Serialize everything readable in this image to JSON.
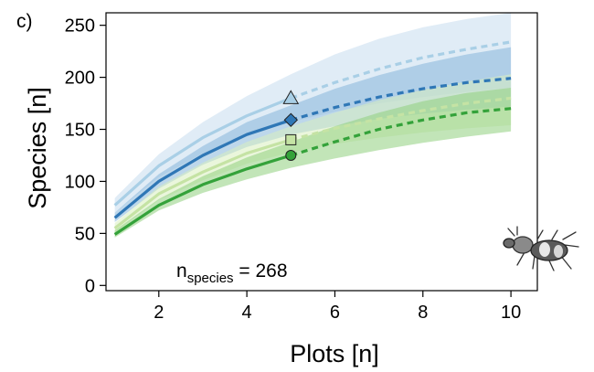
{
  "panel_label": "c)",
  "annotation": {
    "prefix": "n",
    "subscript": "species",
    "equals": " = ",
    "value": "268"
  },
  "chart_data": {
    "type": "line",
    "xlabel": "Plots [n]",
    "ylabel": "Species [n]",
    "xlim": [
      0.8,
      10.6
    ],
    "ylim": [
      -5,
      262
    ],
    "xticks": [
      2,
      4,
      6,
      8,
      10
    ],
    "yticks": [
      0,
      50,
      100,
      150,
      200,
      250
    ],
    "grid": false,
    "observed_until": 5,
    "series": [
      {
        "color": "#a9cfe6",
        "band_color": "#c6dcee",
        "marker": "triangle",
        "x": [
          1,
          2,
          3,
          4,
          5,
          6,
          7,
          8,
          9,
          10
        ],
        "y": [
          77,
          115,
          142,
          163,
          180,
          195,
          208,
          219,
          227,
          234
        ],
        "lower": [
          70,
          104,
          127,
          144,
          157,
          167,
          175,
          181,
          186,
          190
        ],
        "upper": [
          84,
          126,
          157,
          182,
          203,
          222,
          237,
          248,
          256,
          262
        ]
      },
      {
        "color": "#2f77b6",
        "band_color": "#87b6da",
        "marker": "diamond",
        "x": [
          1,
          2,
          3,
          4,
          5,
          6,
          7,
          8,
          9,
          10
        ],
        "y": [
          65,
          100,
          125,
          145,
          159,
          171,
          181,
          189,
          195,
          199
        ],
        "lower": [
          61,
          93,
          116,
          133,
          145,
          153,
          160,
          165,
          169,
          172
        ],
        "upper": [
          70,
          107,
          134,
          157,
          173,
          189,
          202,
          213,
          222,
          229
        ]
      },
      {
        "color": "#c5e3a4",
        "band_color": "#d9eec0",
        "marker": "square",
        "x": [
          1,
          2,
          3,
          4,
          5,
          6,
          7,
          8,
          9,
          10
        ],
        "y": [
          55,
          88,
          109,
          127,
          140,
          151,
          160,
          168,
          175,
          180
        ],
        "lower": [
          51,
          82,
          101,
          117,
          128,
          136,
          142,
          147,
          151,
          154
        ],
        "upper": [
          60,
          95,
          118,
          138,
          153,
          166,
          178,
          188,
          196,
          203
        ]
      },
      {
        "color": "#34a23a",
        "band_color": "#8fcf7e",
        "marker": "circle",
        "x": [
          1,
          2,
          3,
          4,
          5,
          6,
          7,
          8,
          9,
          10
        ],
        "y": [
          49,
          77,
          97,
          112,
          125,
          138,
          150,
          159,
          166,
          170
        ],
        "lower": [
          46,
          72,
          89,
          102,
          113,
          122,
          130,
          137,
          143,
          148
        ],
        "upper": [
          53,
          83,
          105,
          123,
          138,
          153,
          166,
          177,
          185,
          190
        ]
      }
    ]
  }
}
